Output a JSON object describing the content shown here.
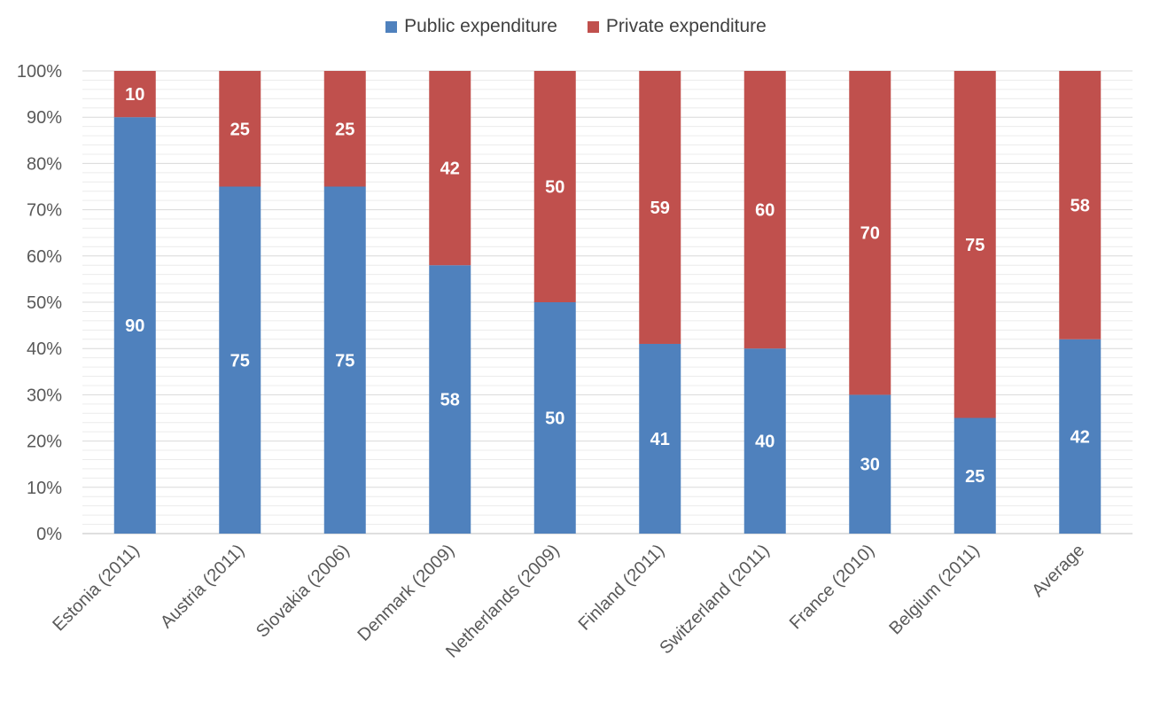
{
  "chart_data": {
    "type": "bar",
    "stacked": true,
    "categories": [
      "Estonia (2011)",
      "Austria (2011)",
      "Slovakia (2006)",
      "Denmark (2009)",
      "Netherlands (2009)",
      "Finland (2011)",
      "Switzerland (2011)",
      "France (2010)",
      "Belgium (2011)",
      "Average"
    ],
    "series": [
      {
        "name": "Public expenditure",
        "color": "#4f81bd",
        "values": [
          90,
          75,
          75,
          58,
          50,
          41,
          40,
          30,
          25,
          42
        ]
      },
      {
        "name": "Private expenditure",
        "color": "#c0504d",
        "values": [
          10,
          25,
          25,
          42,
          50,
          59,
          60,
          70,
          75,
          58
        ]
      }
    ],
    "ylim": [
      0,
      100
    ],
    "yticks": [
      "0%",
      "10%",
      "20%",
      "30%",
      "40%",
      "50%",
      "60%",
      "70%",
      "80%",
      "90%",
      "100%"
    ],
    "legend_position": "top",
    "grid": true
  }
}
